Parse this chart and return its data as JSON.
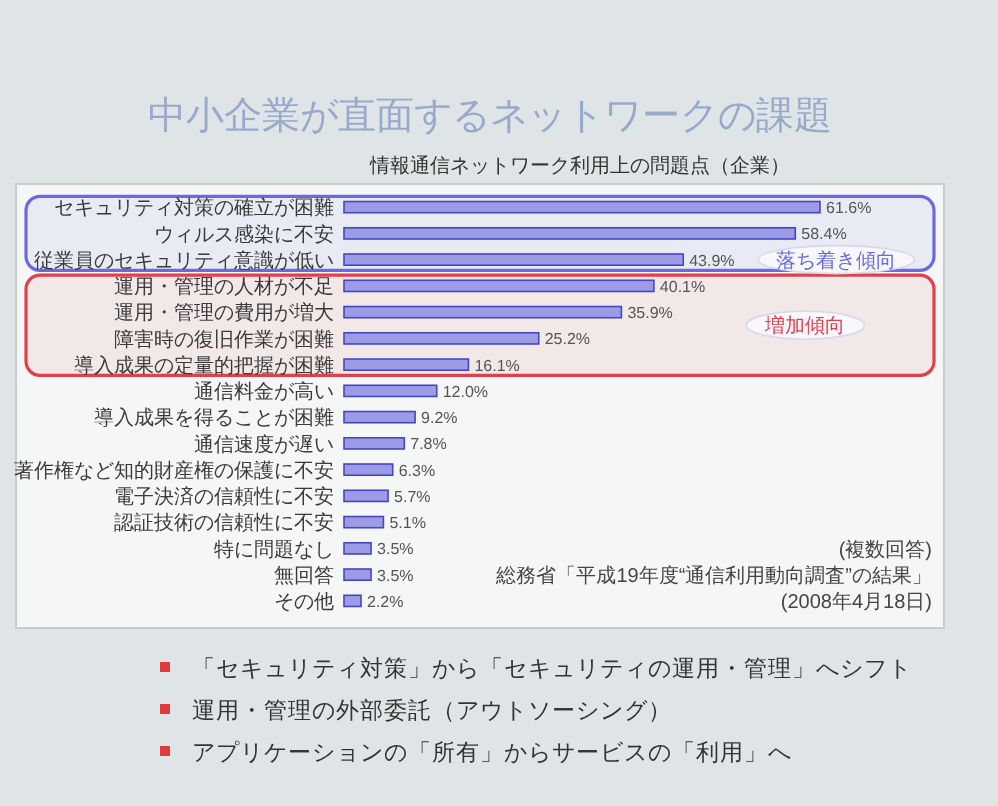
{
  "chart_data": {
    "type": "bar",
    "orientation": "horizontal",
    "title": "中小企業が直面するネットワークの課題",
    "subtitle": "情報通信ネットワーク利用上の問題点（企業）",
    "categories": [
      "セキュリティ対策の確立が困難",
      "ウィルス感染に不安",
      "従業員のセキュリティ意識が低い",
      "運用・管理の人材が不足",
      "運用・管理の費用が増大",
      "障害時の復旧作業が困難",
      "導入成果の定量的把握が困難",
      "通信料金が高い",
      "導入成果を得ることが困難",
      "通信速度が遅い",
      "著作権など知的財産権の保護に不安",
      "電子決済の信頼性に不安",
      "認証技術の信頼性に不安",
      "特に問題なし",
      "無回答",
      "その他"
    ],
    "values": [
      61.6,
      58.4,
      43.9,
      40.1,
      35.9,
      25.2,
      16.1,
      12.0,
      9.2,
      7.8,
      6.3,
      5.7,
      5.1,
      3.5,
      3.5,
      2.2
    ],
    "value_labels": [
      "61.6%",
      "58.4%",
      "43.9%",
      "40.1%",
      "35.9%",
      "25.2%",
      "16.1%",
      "12.0%",
      "9.2%",
      "7.8%",
      "6.3%",
      "5.7%",
      "5.1%",
      "3.5%",
      "3.5%",
      "2.2%"
    ],
    "color": "#9c9ce6",
    "tick_labels": "y",
    "bands": [
      {
        "axis": "y",
        "from": "セキュリティ対策の確立が困難",
        "to": "従業員のセキュリティ意識が低い",
        "label": "落ち着き傾向",
        "color": "#6a6ae0"
      },
      {
        "axis": "y",
        "from": "運用・管理の人材が不足",
        "to": "導入成果の定量的把握が困難",
        "label": "増加傾向",
        "color": "#e0404c"
      }
    ],
    "annotations": [
      "(複数回答)",
      "総務省「平成19年度“通信利用動向調査”の結果」",
      "(2008年4月18日)",
      "「セキュリティ対策」から「セキュリティの運用・管理」へシフト",
      "運用・管理の外部委託（アウトソーシング）",
      "アプリケーションの「所有」からサービスの「利用」へ"
    ]
  }
}
